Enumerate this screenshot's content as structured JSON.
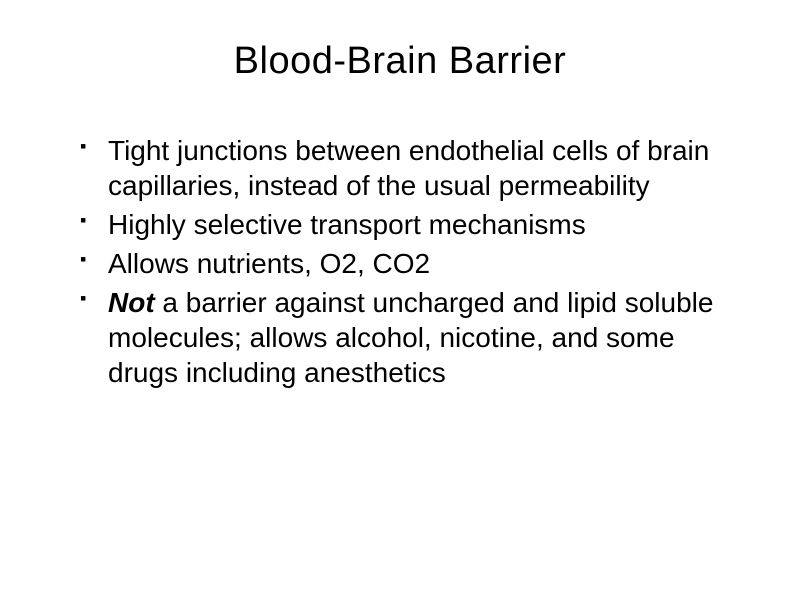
{
  "slide": {
    "title": "Blood-Brain Barrier",
    "title_fontsize": 38,
    "body_fontsize": 28,
    "background_color": "#ffffff",
    "text_color": "#000000",
    "bullet_glyph": "▪",
    "bullets": [
      {
        "text": "Tight junctions between endothelial cells of brain capillaries, instead of the usual permeability"
      },
      {
        "text": "Highly selective transport mechanisms"
      },
      {
        "text": "Allows nutrients, O2, CO2"
      },
      {
        "emph": "Not",
        "rest": " a barrier against uncharged and lipid soluble molecules; allows alcohol, nicotine, and some drugs including anesthetics"
      }
    ]
  }
}
